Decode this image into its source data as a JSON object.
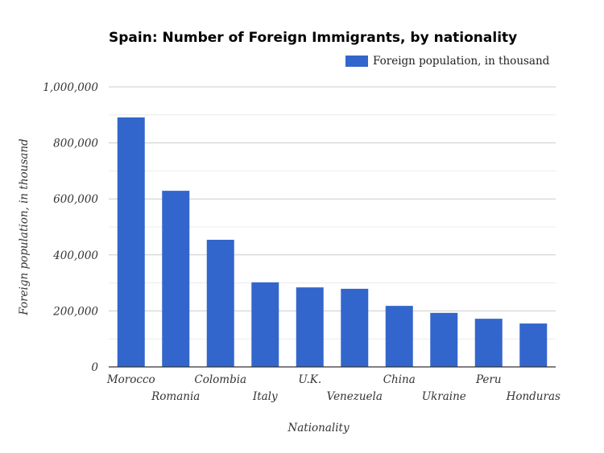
{
  "chart_data": {
    "type": "bar",
    "title": "Spain: Number of Foreign Immigrants, by nationality",
    "xlabel": "Nationality",
    "ylabel": "Foreign population, in thousand",
    "legend": {
      "position": "top-right",
      "entries": [
        "Foreign population, in thousand"
      ]
    },
    "categories": [
      "Morocco",
      "Romania",
      "Colombia",
      "Italy",
      "U.K.",
      "Venezuela",
      "China",
      "Ukraine",
      "Peru",
      "Honduras"
    ],
    "series": [
      {
        "name": "Foreign population, in thousand",
        "color": "#3366cc",
        "values": [
          891000,
          629000,
          454000,
          302000,
          284000,
          279000,
          218000,
          193000,
          172000,
          155000
        ]
      }
    ],
    "ylim": [
      0,
      1000000
    ],
    "yticks": [
      0,
      200000,
      400000,
      600000,
      800000,
      1000000
    ],
    "ytick_labels": [
      "0",
      "200,000",
      "400,000",
      "600,000",
      "800,000",
      "1,000,000"
    ],
    "grid": true
  }
}
